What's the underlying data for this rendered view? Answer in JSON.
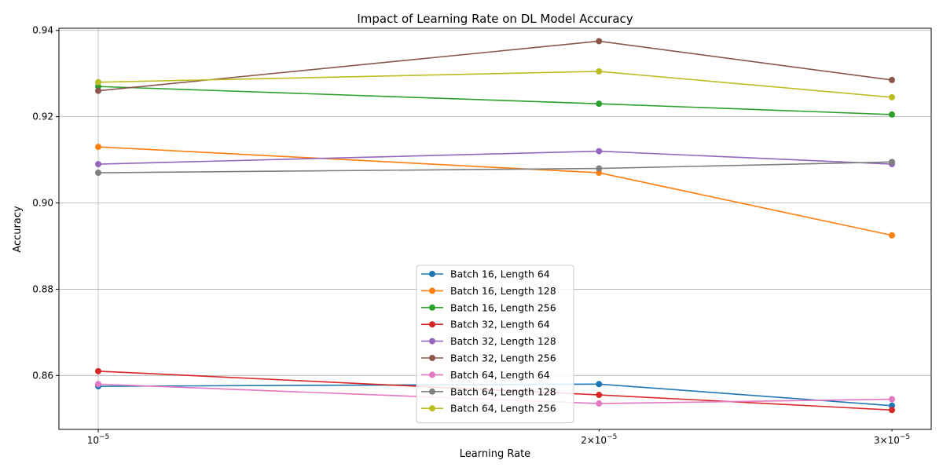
{
  "chart_data": {
    "type": "line",
    "title": "Impact of Learning Rate on DL Model Accuracy",
    "xlabel": "Learning Rate",
    "ylabel": "Accuracy",
    "x_scale": "log",
    "x": [
      1e-05,
      2e-05,
      3e-05
    ],
    "x_tick_labels": [
      {
        "value": 1e-05,
        "coef": "",
        "exp": "−5"
      },
      {
        "value": 2e-05,
        "coef": "2×",
        "exp": "−5"
      },
      {
        "value": 3e-05,
        "coef": "3×",
        "exp": "−5"
      }
    ],
    "y_ticks": [
      0.86,
      0.88,
      0.9,
      0.92,
      0.94
    ],
    "y_tick_labels": [
      "0.86",
      "0.88",
      "0.90",
      "0.92",
      "0.94"
    ],
    "ylim": [
      0.8475,
      0.9405
    ],
    "grid": true,
    "legend_position": "lower center",
    "series": [
      {
        "name": "Batch 16, Length 64",
        "color": "#1f77b4",
        "values": [
          0.8575,
          0.858,
          0.853
        ]
      },
      {
        "name": "Batch 16, Length 128",
        "color": "#ff7f0e",
        "values": [
          0.913,
          0.907,
          0.8925
        ]
      },
      {
        "name": "Batch 16, Length 256",
        "color": "#2ca02c",
        "values": [
          0.927,
          0.923,
          0.9205
        ]
      },
      {
        "name": "Batch 32, Length 64",
        "color": "#d62728",
        "values": [
          0.861,
          0.8555,
          0.852
        ]
      },
      {
        "name": "Batch 32, Length 128",
        "color": "#9467bd",
        "values": [
          0.909,
          0.912,
          0.909
        ]
      },
      {
        "name": "Batch 32, Length 256",
        "color": "#8c564b",
        "values": [
          0.926,
          0.9375,
          0.9285
        ]
      },
      {
        "name": "Batch 64, Length 64",
        "color": "#e377c2",
        "values": [
          0.858,
          0.8535,
          0.8545
        ]
      },
      {
        "name": "Batch 64, Length 128",
        "color": "#7f7f7f",
        "values": [
          0.907,
          0.908,
          0.9095
        ]
      },
      {
        "name": "Batch 64, Length 256",
        "color": "#bcbd22",
        "values": [
          0.928,
          0.9305,
          0.9245
        ]
      }
    ]
  }
}
